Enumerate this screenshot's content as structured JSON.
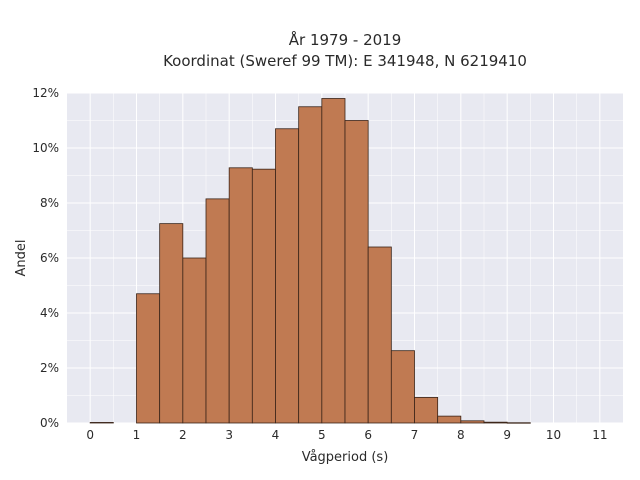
{
  "chart_data": {
    "type": "bar",
    "title_line1": "År 1979 - 2019",
    "title_line2": "Koordinat (Sweref 99 TM): E 341948, N 6219410",
    "xlabel": "Vågperiod (s)",
    "ylabel": "Andel",
    "bin_width": 0.5,
    "bins": [
      {
        "x_start": 0.0,
        "value": 0.0002
      },
      {
        "x_start": 1.0,
        "value": 0.047
      },
      {
        "x_start": 1.5,
        "value": 0.0725
      },
      {
        "x_start": 2.0,
        "value": 0.06
      },
      {
        "x_start": 2.5,
        "value": 0.0815
      },
      {
        "x_start": 3.0,
        "value": 0.0928
      },
      {
        "x_start": 3.5,
        "value": 0.0923
      },
      {
        "x_start": 4.0,
        "value": 0.107
      },
      {
        "x_start": 4.5,
        "value": 0.115
      },
      {
        "x_start": 5.0,
        "value": 0.118
      },
      {
        "x_start": 5.5,
        "value": 0.11
      },
      {
        "x_start": 6.0,
        "value": 0.064
      },
      {
        "x_start": 6.5,
        "value": 0.0263
      },
      {
        "x_start": 7.0,
        "value": 0.0093
      },
      {
        "x_start": 7.5,
        "value": 0.0025
      },
      {
        "x_start": 8.0,
        "value": 0.0008
      },
      {
        "x_start": 8.5,
        "value": 0.0003
      },
      {
        "x_start": 9.0,
        "value": 0.0001
      }
    ],
    "xticks": [
      "0",
      "1",
      "2",
      "3",
      "4",
      "5",
      "6",
      "7",
      "8",
      "9",
      "10",
      "11"
    ],
    "yticks": [
      "0%",
      "2%",
      "4%",
      "6%",
      "8%",
      "10%",
      "12%"
    ],
    "xlim": [
      -0.5,
      11.5
    ],
    "ylim": [
      0,
      0.12
    ],
    "ytick_values": [
      0,
      0.02,
      0.04,
      0.06,
      0.08,
      0.1,
      0.12
    ],
    "xtick_values": [
      0,
      1,
      2,
      3,
      4,
      5,
      6,
      7,
      8,
      9,
      10,
      11
    ],
    "grid": true,
    "colors": {
      "bar_fill": "#c07a52",
      "bar_stroke": "#3a2418",
      "plot_background": "#e8e9f1",
      "grid_line": "#ffffff"
    }
  }
}
